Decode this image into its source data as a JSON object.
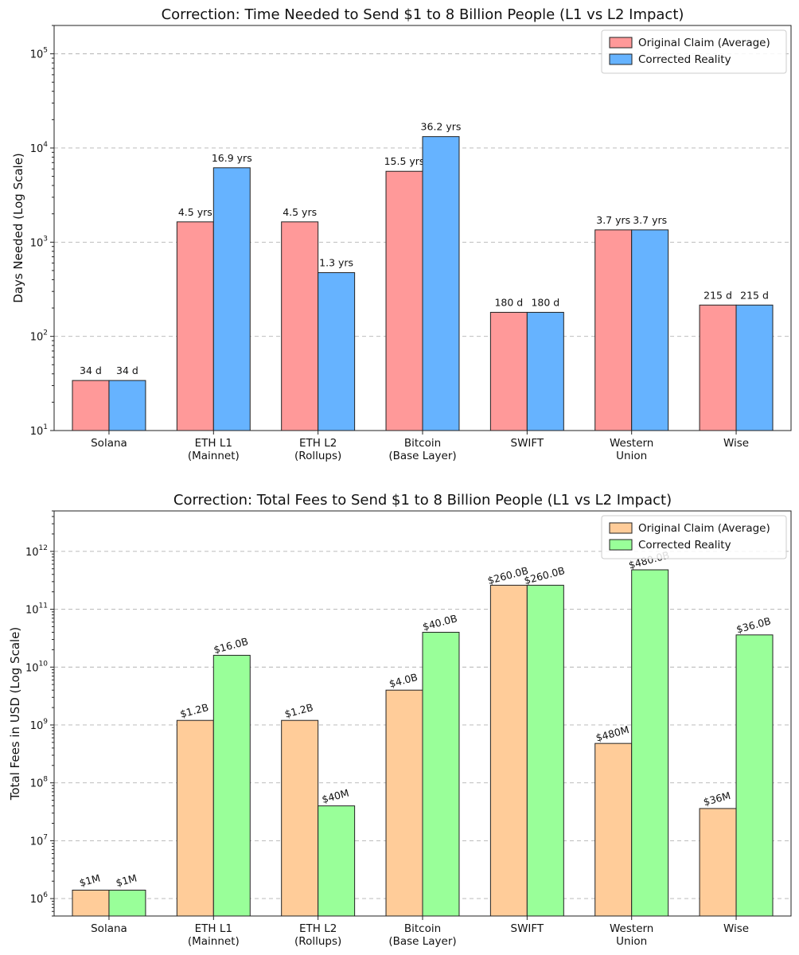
{
  "chart_data": [
    {
      "type": "bar",
      "title": "Correction: Time Needed to Send $1 to 8 Billion People (L1 vs L2 Impact)",
      "ylabel": "Days Needed (Log Scale)",
      "yscale": "log",
      "ylim": [
        10,
        200000
      ],
      "yticks": [
        {
          "base": "10",
          "exp": "1"
        },
        {
          "base": "10",
          "exp": "2"
        },
        {
          "base": "10",
          "exp": "3"
        },
        {
          "base": "10",
          "exp": "4"
        },
        {
          "base": "10",
          "exp": "5"
        }
      ],
      "ytick_values": [
        10,
        100,
        1000,
        10000,
        100000
      ],
      "grid": true,
      "legend": "top-right",
      "categories": [
        [
          "Solana"
        ],
        [
          "ETH L1",
          "(Mainnet)"
        ],
        [
          "ETH L2",
          "(Rollups)"
        ],
        [
          "Bitcoin",
          "(Base Layer)"
        ],
        [
          "SWIFT"
        ],
        [
          "Western",
          "Union"
        ],
        [
          "Wise"
        ]
      ],
      "series": [
        {
          "name": "Original Claim (Average)",
          "color": "#ff9999",
          "values": [
            34,
            1643,
            1643,
            5658,
            180,
            1351,
            215
          ],
          "labels": [
            "34 d",
            "4.5 yrs",
            "4.5 yrs",
            "15.5 yrs",
            "180 d",
            "3.7 yrs",
            "215 d"
          ]
        },
        {
          "name": "Corrected Reality",
          "color": "#66b3ff",
          "values": [
            34,
            6168,
            475,
            13213,
            180,
            1351,
            215
          ],
          "labels": [
            "34 d",
            "16.9 yrs",
            "1.3 yrs",
            "36.2 yrs",
            "180 d",
            "3.7 yrs",
            "215 d"
          ]
        }
      ]
    },
    {
      "type": "bar",
      "title": "Correction: Total Fees to Send $1 to 8 Billion People (L1 vs L2 Impact)",
      "ylabel": "Total Fees in USD (Log Scale)",
      "yscale": "log",
      "ylim": [
        500000,
        5000000000000
      ],
      "yticks": [
        {
          "base": "10",
          "exp": "6"
        },
        {
          "base": "10",
          "exp": "7"
        },
        {
          "base": "10",
          "exp": "8"
        },
        {
          "base": "10",
          "exp": "9"
        },
        {
          "base": "10",
          "exp": "10"
        },
        {
          "base": "10",
          "exp": "11"
        },
        {
          "base": "10",
          "exp": "12"
        }
      ],
      "ytick_values": [
        1000000,
        10000000,
        100000000,
        1000000000,
        10000000000,
        100000000000,
        1000000000000
      ],
      "grid": true,
      "legend": "top-right",
      "label_rotation": -15,
      "categories": [
        [
          "Solana"
        ],
        [
          "ETH L1",
          "(Mainnet)"
        ],
        [
          "ETH L2",
          "(Rollups)"
        ],
        [
          "Bitcoin",
          "(Base Layer)"
        ],
        [
          "SWIFT"
        ],
        [
          "Western",
          "Union"
        ],
        [
          "Wise"
        ]
      ],
      "series": [
        {
          "name": "Original Claim (Average)",
          "color": "#ffcc99",
          "values": [
            1400000,
            1200000000,
            1200000000,
            4000000000,
            260000000000,
            480000000,
            36000000
          ],
          "labels": [
            "$1M",
            "$1.2B",
            "$1.2B",
            "$4.0B",
            "$260.0B",
            "$480M",
            "$36M"
          ]
        },
        {
          "name": "Corrected Reality",
          "color": "#99ff99",
          "values": [
            1400000,
            16000000000,
            40000000,
            40000000000,
            260000000000,
            480000000000,
            36000000000
          ],
          "labels": [
            "$1M",
            "$16.0B",
            "$40M",
            "$40.0B",
            "$260.0B",
            "$480.0B",
            "$36.0B"
          ]
        }
      ]
    }
  ]
}
